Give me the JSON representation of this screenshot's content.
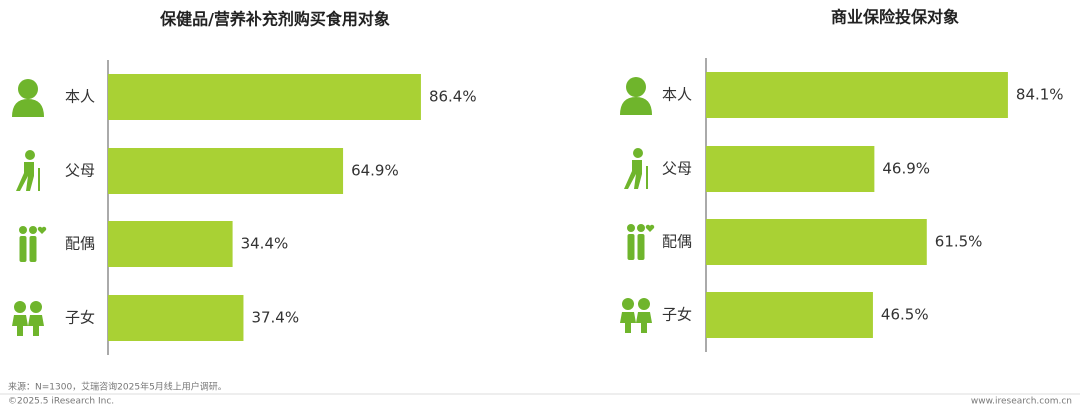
{
  "chart_data": [
    {
      "type": "bar",
      "orientation": "horizontal",
      "title": "保健品/营养补充剂购买食用对象",
      "categories": [
        "本人",
        "父母",
        "配偶",
        "子女"
      ],
      "values": [
        86.4,
        64.9,
        34.4,
        37.4
      ],
      "value_labels": [
        "86.4%",
        "64.9%",
        "34.4%",
        "37.4%"
      ],
      "color": "#a9d134"
    },
    {
      "type": "bar",
      "orientation": "horizontal",
      "title": "商业保险投保对象",
      "categories": [
        "本人",
        "父母",
        "配偶",
        "子女"
      ],
      "values": [
        84.1,
        46.9,
        61.5,
        46.5
      ],
      "value_labels": [
        "84.1%",
        "46.9%",
        "61.5%",
        "46.5%"
      ],
      "color": "#a9d134"
    }
  ],
  "footer": {
    "source": "来源：N=1300，艾瑞咨询2025年5月线上用户调研。",
    "copyright": "©2025.5 iResearch Inc.",
    "website": "www.iresearch.com.cn"
  }
}
